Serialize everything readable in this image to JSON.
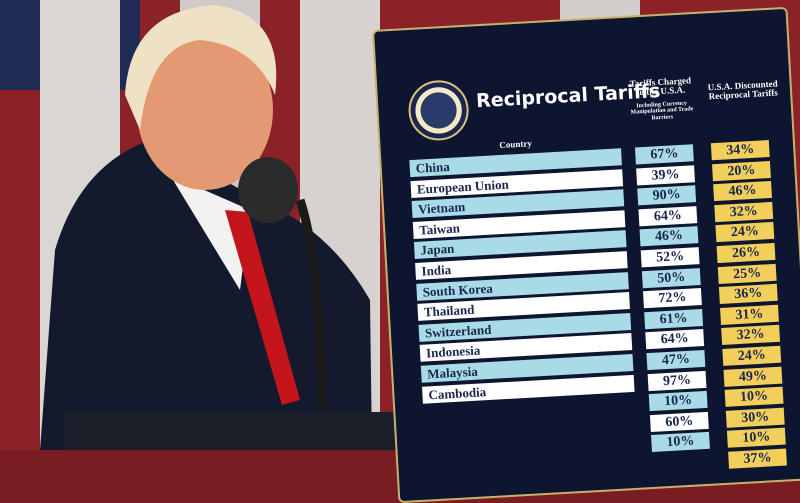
{
  "board": {
    "title": "Reciprocal Tariffs",
    "column_headers": {
      "country": "Country",
      "charged": "Tariffs Charged to the U.S.A.",
      "charged_note": "Including Currency Manipulation and Trade Barriers",
      "discounted": "U.S.A. Discounted Reciprocal Tariffs"
    },
    "rows": [
      {
        "country": "China",
        "charged": "67%",
        "discounted": "34%"
      },
      {
        "country": "European Union",
        "charged": "39%",
        "discounted": "20%"
      },
      {
        "country": "Vietnam",
        "charged": "90%",
        "discounted": "46%"
      },
      {
        "country": "Taiwan",
        "charged": "64%",
        "discounted": "32%"
      },
      {
        "country": "Japan",
        "charged": "46%",
        "discounted": "24%"
      },
      {
        "country": "India",
        "charged": "52%",
        "discounted": "26%"
      },
      {
        "country": "South Korea",
        "charged": "50%",
        "discounted": "25%"
      },
      {
        "country": "Thailand",
        "charged": "72%",
        "discounted": "36%"
      },
      {
        "country": "Switzerland",
        "charged": "61%",
        "discounted": "31%"
      },
      {
        "country": "Indonesia",
        "charged": "64%",
        "discounted": "32%"
      },
      {
        "country": "Malaysia",
        "charged": "47%",
        "discounted": "24%"
      },
      {
        "country": "Cambodia",
        "charged": "97%",
        "discounted": "49%"
      },
      {
        "charged": "10%",
        "discounted": "10%"
      },
      {
        "charged": "60%",
        "discounted": "30%"
      },
      {
        "charged": "10%",
        "discounted": "10%"
      },
      {
        "discounted": "37%"
      }
    ]
  }
}
